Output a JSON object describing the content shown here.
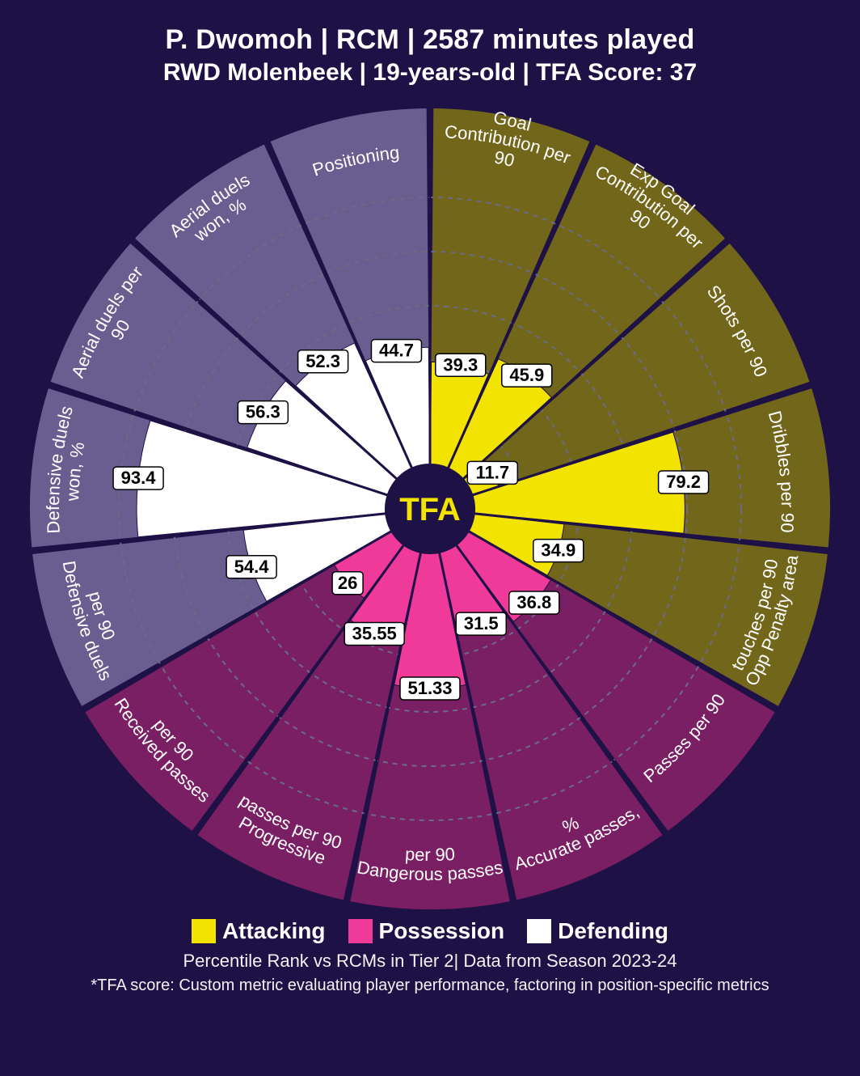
{
  "header": {
    "title": "P. Dwomoh | RCM | 2587 minutes played",
    "subtitle": "RWD Molenbeek | 19-years-old | TFA Score: 37"
  },
  "footer": {
    "line1": "Percentile Rank vs RCMs in Tier 2| Data from Season 2023-24",
    "line2": "*TFA score: Custom metric evaluating player performance, factoring in position-specific metrics"
  },
  "legend": {
    "items": [
      {
        "label": "Attacking",
        "color": "#f2e400"
      },
      {
        "label": "Possession",
        "color": "#f03a9a"
      },
      {
        "label": "Defending",
        "color": "#ffffff"
      }
    ]
  },
  "style": {
    "background": "#1e1146",
    "text_color": "#ffffff",
    "grid_color": "#6b6b85",
    "grid_dash": "6,6",
    "center_fill": "#1e1146",
    "center_text": "TFA",
    "center_text_color": "#f2e400",
    "center_text_fontsize": 40,
    "center_radius_pct": 13,
    "label_box_fill": "#ffffff",
    "label_box_text": "#000000",
    "label_box_fontsize": 22,
    "label_box_radius": 4,
    "category_label_fontsize": 22,
    "category_label_color": "#ffffff",
    "n_rings": 5,
    "outer_radius": 385,
    "label_ring_radius": 435,
    "band_inner": 390,
    "band_outer": 495,
    "wedge_gap_deg": 0.5
  },
  "chart": {
    "type": "polar-bar",
    "start_angle_deg": -90,
    "direction": "clockwise",
    "categories": [
      "attacking",
      "possession",
      "defending"
    ],
    "category_styles": {
      "attacking": {
        "bar": "#f2e400",
        "band": "#72661a"
      },
      "possession": {
        "bar": "#f03a9a",
        "band": "#7a1f63"
      },
      "defending": {
        "bar": "#ffffff",
        "band": "#6a5e91"
      }
    },
    "metrics": [
      {
        "label": "Goal Contribution per 90",
        "value": 39.3,
        "category": "attacking"
      },
      {
        "label": "Exp Goal Contribution per 90",
        "value": 45.9,
        "category": "attacking"
      },
      {
        "label": "Shots per 90",
        "value": 11.7,
        "category": "attacking"
      },
      {
        "label": "Dribbles per 90",
        "value": 79.2,
        "category": "attacking"
      },
      {
        "label": "Opp Penalty area touches per 90",
        "value": 34.9,
        "category": "attacking"
      },
      {
        "label": "Passes per 90",
        "value": 36.8,
        "category": "possession"
      },
      {
        "label": "Accurate passes, %",
        "value": 31.5,
        "category": "possession"
      },
      {
        "label": "Dangerous passes per 90",
        "value": 51.33,
        "category": "possession"
      },
      {
        "label": "Progressive passes per 90",
        "value": 35.55,
        "category": "possession"
      },
      {
        "label": "Received passes per 90",
        "value": 26.0,
        "category": "possession"
      },
      {
        "label": "Defensive duels per 90",
        "value": 54.4,
        "category": "defending"
      },
      {
        "label": "Defensive duels won, %",
        "value": 93.4,
        "category": "defending"
      },
      {
        "label": "Aerial duels per 90",
        "value": 56.3,
        "category": "defending"
      },
      {
        "label": "Aerial duels won, %",
        "value": 52.3,
        "category": "defending"
      },
      {
        "label": "Positioning",
        "value": 44.7,
        "category": "defending"
      }
    ]
  }
}
